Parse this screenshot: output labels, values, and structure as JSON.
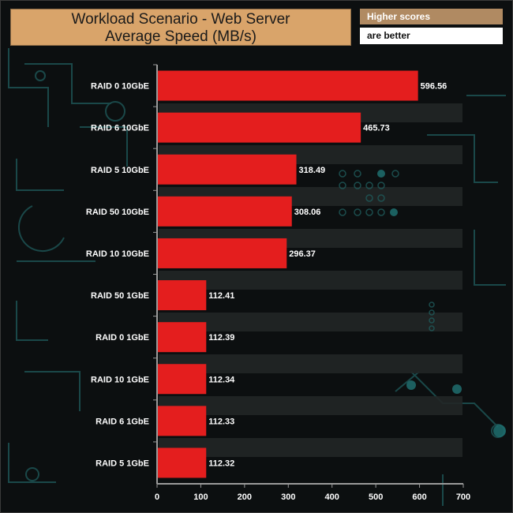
{
  "title": {
    "line1": "Workload Scenario - Web Server",
    "line2": "Average Speed (MB/s)"
  },
  "legend": {
    "line1": "Higher scores",
    "line2": "are better"
  },
  "colors": {
    "bar": "#e41e1e",
    "title_bg": "#d9a46a",
    "legend_bg": "#b08a62",
    "background": "#0c0f10",
    "decor": "#1f5c5c"
  },
  "chart_data": {
    "type": "bar",
    "orientation": "horizontal",
    "title": "Workload Scenario - Web Server Average Speed (MB/s)",
    "categories": [
      "RAID 0 10GbE",
      "RAID 6 10GbE",
      "RAID 5 10GbE",
      "RAID 50 10GbE",
      "RAID 10 10GbE",
      "RAID 50 1GbE",
      "RAID 0 1GbE",
      "RAID 10 1GbE",
      "RAID 6 1GbE",
      "RAID 5 1GbE"
    ],
    "values": [
      596.56,
      465.73,
      318.49,
      308.06,
      296.37,
      112.41,
      112.39,
      112.34,
      112.33,
      112.32
    ],
    "value_labels": [
      "596.56",
      "465.73",
      "318.49",
      "308.06",
      "296.37",
      "112.41",
      "112.39",
      "112.34",
      "112.33",
      "112.32"
    ],
    "xlim": [
      0,
      700
    ],
    "xticks": [
      0,
      100,
      200,
      300,
      400,
      500,
      600,
      700
    ],
    "xtick_labels": [
      "0",
      "100",
      "200",
      "300",
      "400",
      "500",
      "600",
      "700"
    ],
    "grid": false,
    "legend_position": "top-right"
  }
}
